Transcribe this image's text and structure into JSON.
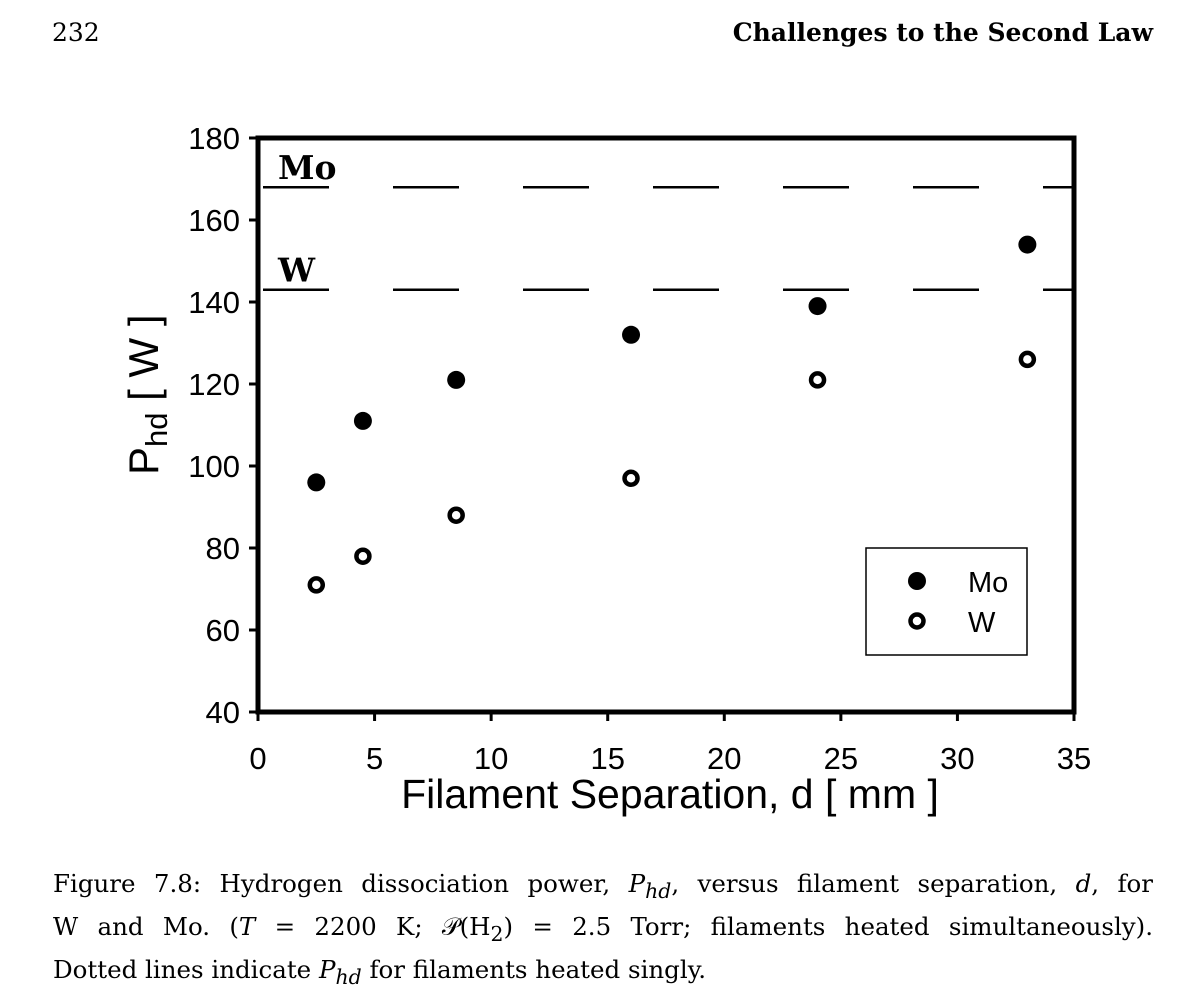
{
  "header": {
    "page_number": "232",
    "running_title": "Challenges to the Second Law"
  },
  "chart_data": {
    "type": "scatter",
    "xlabel": "Filament Separation, d  [ mm ]",
    "ylabel_main": "P",
    "ylabel_sub": "hd",
    "ylabel_unit": " [ W ]",
    "xlim": [
      0,
      35
    ],
    "ylim": [
      40,
      180
    ],
    "xticks": [
      0,
      5,
      10,
      15,
      20,
      25,
      30,
      35
    ],
    "yticks": [
      40,
      60,
      80,
      100,
      120,
      140,
      160,
      180
    ],
    "grid": false,
    "legend_position": "bottom-right",
    "series": [
      {
        "name": "Mo",
        "marker": "filled-circle",
        "x": [
          2.5,
          4.5,
          8.5,
          16,
          24,
          33
        ],
        "y": [
          96,
          111,
          121,
          132,
          139,
          154
        ]
      },
      {
        "name": "W",
        "marker": "open-circle",
        "x": [
          2.5,
          4.5,
          8.5,
          16,
          24,
          33
        ],
        "y": [
          71,
          78,
          88,
          97,
          121,
          126
        ]
      }
    ],
    "reference_lines": [
      {
        "label": "Mo",
        "y": 168,
        "style": "dashed"
      },
      {
        "label": "W",
        "y": 143,
        "style": "dashed"
      }
    ]
  },
  "caption": {
    "line1_a": "Figure 7.8: Hydrogen dissociation power, ",
    "line1_sym_p": "P",
    "line1_sym_sub": "hd",
    "line1_b": ", versus filament separation, ",
    "line1_sym_d": "d",
    "line1_c": ", for",
    "line2_a": "W and Mo.  (",
    "line2_t": "T",
    "line2_b": " = 2200 K; ",
    "line2_p": "𝒫",
    "line2_c": "(H",
    "line2_sub2": "2",
    "line2_d": ") = 2.5 Torr; filaments heated simultaneously).",
    "line3_a": "Dotted lines indicate ",
    "line3_sym_p": "P",
    "line3_sym_sub": "hd",
    "line3_b": " for filaments heated singly."
  }
}
